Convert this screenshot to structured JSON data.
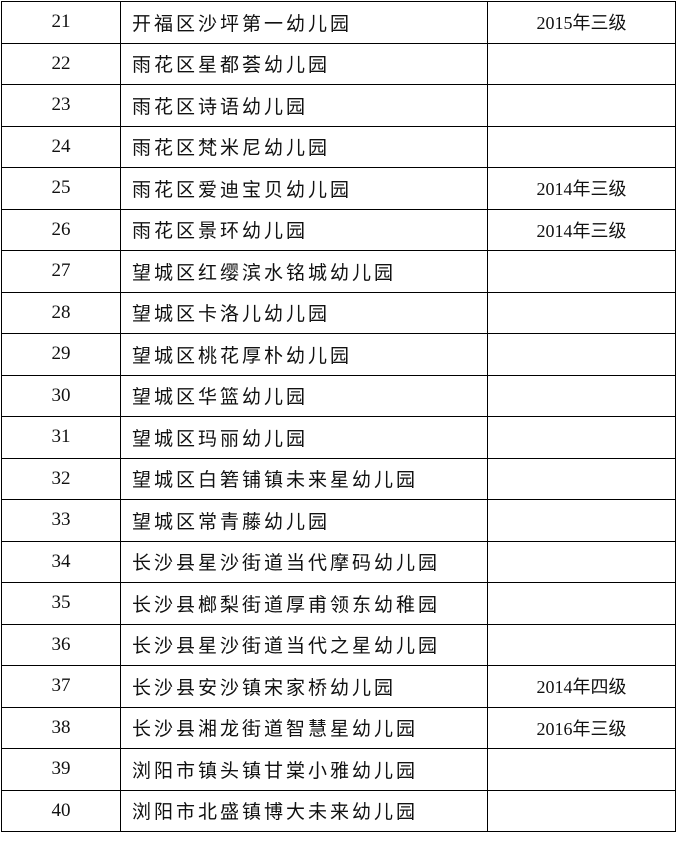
{
  "rows": [
    {
      "no": "21",
      "name": "开福区沙坪第一幼儿园",
      "level": "2015年三级"
    },
    {
      "no": "22",
      "name": "雨花区星都荟幼儿园",
      "level": ""
    },
    {
      "no": "23",
      "name": "雨花区诗语幼儿园",
      "level": ""
    },
    {
      "no": "24",
      "name": "雨花区梵米尼幼儿园",
      "level": ""
    },
    {
      "no": "25",
      "name": "雨花区爱迪宝贝幼儿园",
      "level": "2014年三级"
    },
    {
      "no": "26",
      "name": "雨花区景环幼儿园",
      "level": "2014年三级"
    },
    {
      "no": "27",
      "name": "望城区红缨滨水铭城幼儿园",
      "level": ""
    },
    {
      "no": "28",
      "name": "望城区卡洛儿幼儿园",
      "level": ""
    },
    {
      "no": "29",
      "name": "望城区桃花厚朴幼儿园",
      "level": ""
    },
    {
      "no": "30",
      "name": "望城区华篮幼儿园",
      "level": ""
    },
    {
      "no": "31",
      "name": "望城区玛丽幼儿园",
      "level": ""
    },
    {
      "no": "32",
      "name": "望城区白箬铺镇未来星幼儿园",
      "level": ""
    },
    {
      "no": "33",
      "name": "望城区常青藤幼儿园",
      "level": ""
    },
    {
      "no": "34",
      "name": "长沙县星沙街道当代摩码幼儿园",
      "level": ""
    },
    {
      "no": "35",
      "name": "长沙县榔梨街道厚甫领东幼稚园",
      "level": ""
    },
    {
      "no": "36",
      "name": "长沙县星沙街道当代之星幼儿园",
      "level": ""
    },
    {
      "no": "37",
      "name": "长沙县安沙镇宋家桥幼儿园",
      "level": "2014年四级"
    },
    {
      "no": "38",
      "name": "长沙县湘龙街道智慧星幼儿园",
      "level": "2016年三级"
    },
    {
      "no": "39",
      "name": "浏阳市镇头镇甘棠小雅幼儿园",
      "level": ""
    },
    {
      "no": "40",
      "name": "浏阳市北盛镇博大未来幼儿园",
      "level": ""
    }
  ]
}
